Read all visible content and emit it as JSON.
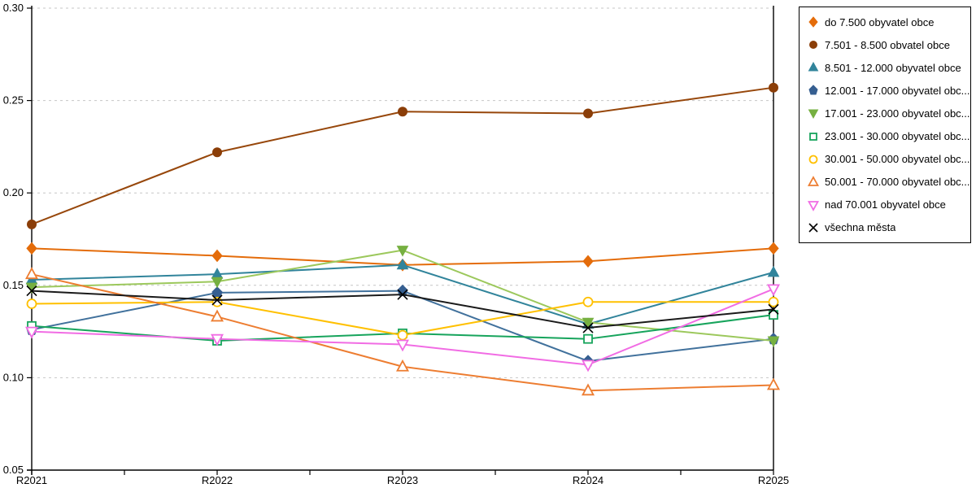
{
  "chart_data": {
    "type": "line",
    "title": "",
    "xlabel": "",
    "ylabel": "",
    "categories": [
      "R2021",
      "R2022",
      "R2023",
      "R2024",
      "R2025"
    ],
    "ylim": [
      0.05,
      0.3
    ],
    "yticks": [
      0.3,
      0.25,
      0.2,
      0.15,
      0.1,
      0.05
    ],
    "grid": "horizontal-dashed",
    "grid_color": "#c6c6c6",
    "axis_color": "#000000",
    "legend_position": "right-outside",
    "series": [
      {
        "name": "do 7.500 obyvatel obce",
        "marker": "diamond",
        "fill": "filled",
        "color": "#E46C0A",
        "marker_color": "#E46C0A",
        "values": [
          0.17,
          0.166,
          0.161,
          0.163,
          0.17
        ]
      },
      {
        "name": "7.501 - 8.500 obvatel obce",
        "marker": "circle",
        "fill": "filled",
        "color": "#97470B",
        "marker_color": "#8B3E08",
        "values": [
          0.183,
          0.222,
          0.244,
          0.243,
          0.257
        ]
      },
      {
        "name": "8.501 - 12.000 obyvatel obce",
        "marker": "triangle-up",
        "fill": "filled",
        "color": "#31849B",
        "marker_color": "#31849B",
        "values": [
          0.153,
          0.156,
          0.161,
          0.129,
          0.157
        ]
      },
      {
        "name": "12.001 - 17.000 obyvatel obc...",
        "marker": "pentagon",
        "fill": "filled",
        "color": "#41719C",
        "marker_color": "#365F91",
        "values": [
          0.126,
          0.146,
          0.147,
          0.109,
          0.121
        ]
      },
      {
        "name": "17.001 - 23.000 obyvatel obc...",
        "marker": "triangle-down",
        "fill": "filled",
        "color": "#9CC85C",
        "marker_color": "#76B041",
        "values": [
          0.149,
          0.152,
          0.169,
          0.13,
          0.12
        ]
      },
      {
        "name": "23.001 - 30.000 obyvatel obc...",
        "marker": "square",
        "fill": "hollow",
        "color": "#17A45C",
        "marker_color": "#17A45C",
        "values": [
          0.128,
          0.12,
          0.124,
          0.121,
          0.134
        ]
      },
      {
        "name": "30.001 - 50.000 obyvatel obc...",
        "marker": "circle",
        "fill": "hollow",
        "color": "#FFC000",
        "marker_color": "#FFC000",
        "values": [
          0.14,
          0.141,
          0.123,
          0.141,
          0.141
        ]
      },
      {
        "name": "50.001 - 70.000 obyvatel obc...",
        "marker": "triangle-up",
        "fill": "hollow",
        "color": "#ED7D31",
        "marker_color": "#ED7D31",
        "values": [
          0.156,
          0.133,
          0.106,
          0.093,
          0.096
        ]
      },
      {
        "name": "nad 70.001 obyvatel obce",
        "marker": "triangle-down",
        "fill": "hollow",
        "color": "#F16CE4",
        "marker_color": "#F16CE4",
        "values": [
          0.125,
          0.121,
          0.118,
          0.107,
          0.148
        ]
      },
      {
        "name": "všechna města",
        "marker": "x",
        "fill": "line",
        "color": "#1A1A1A",
        "marker_color": "#000000",
        "values": [
          0.147,
          0.142,
          0.145,
          0.127,
          0.137
        ]
      }
    ]
  }
}
